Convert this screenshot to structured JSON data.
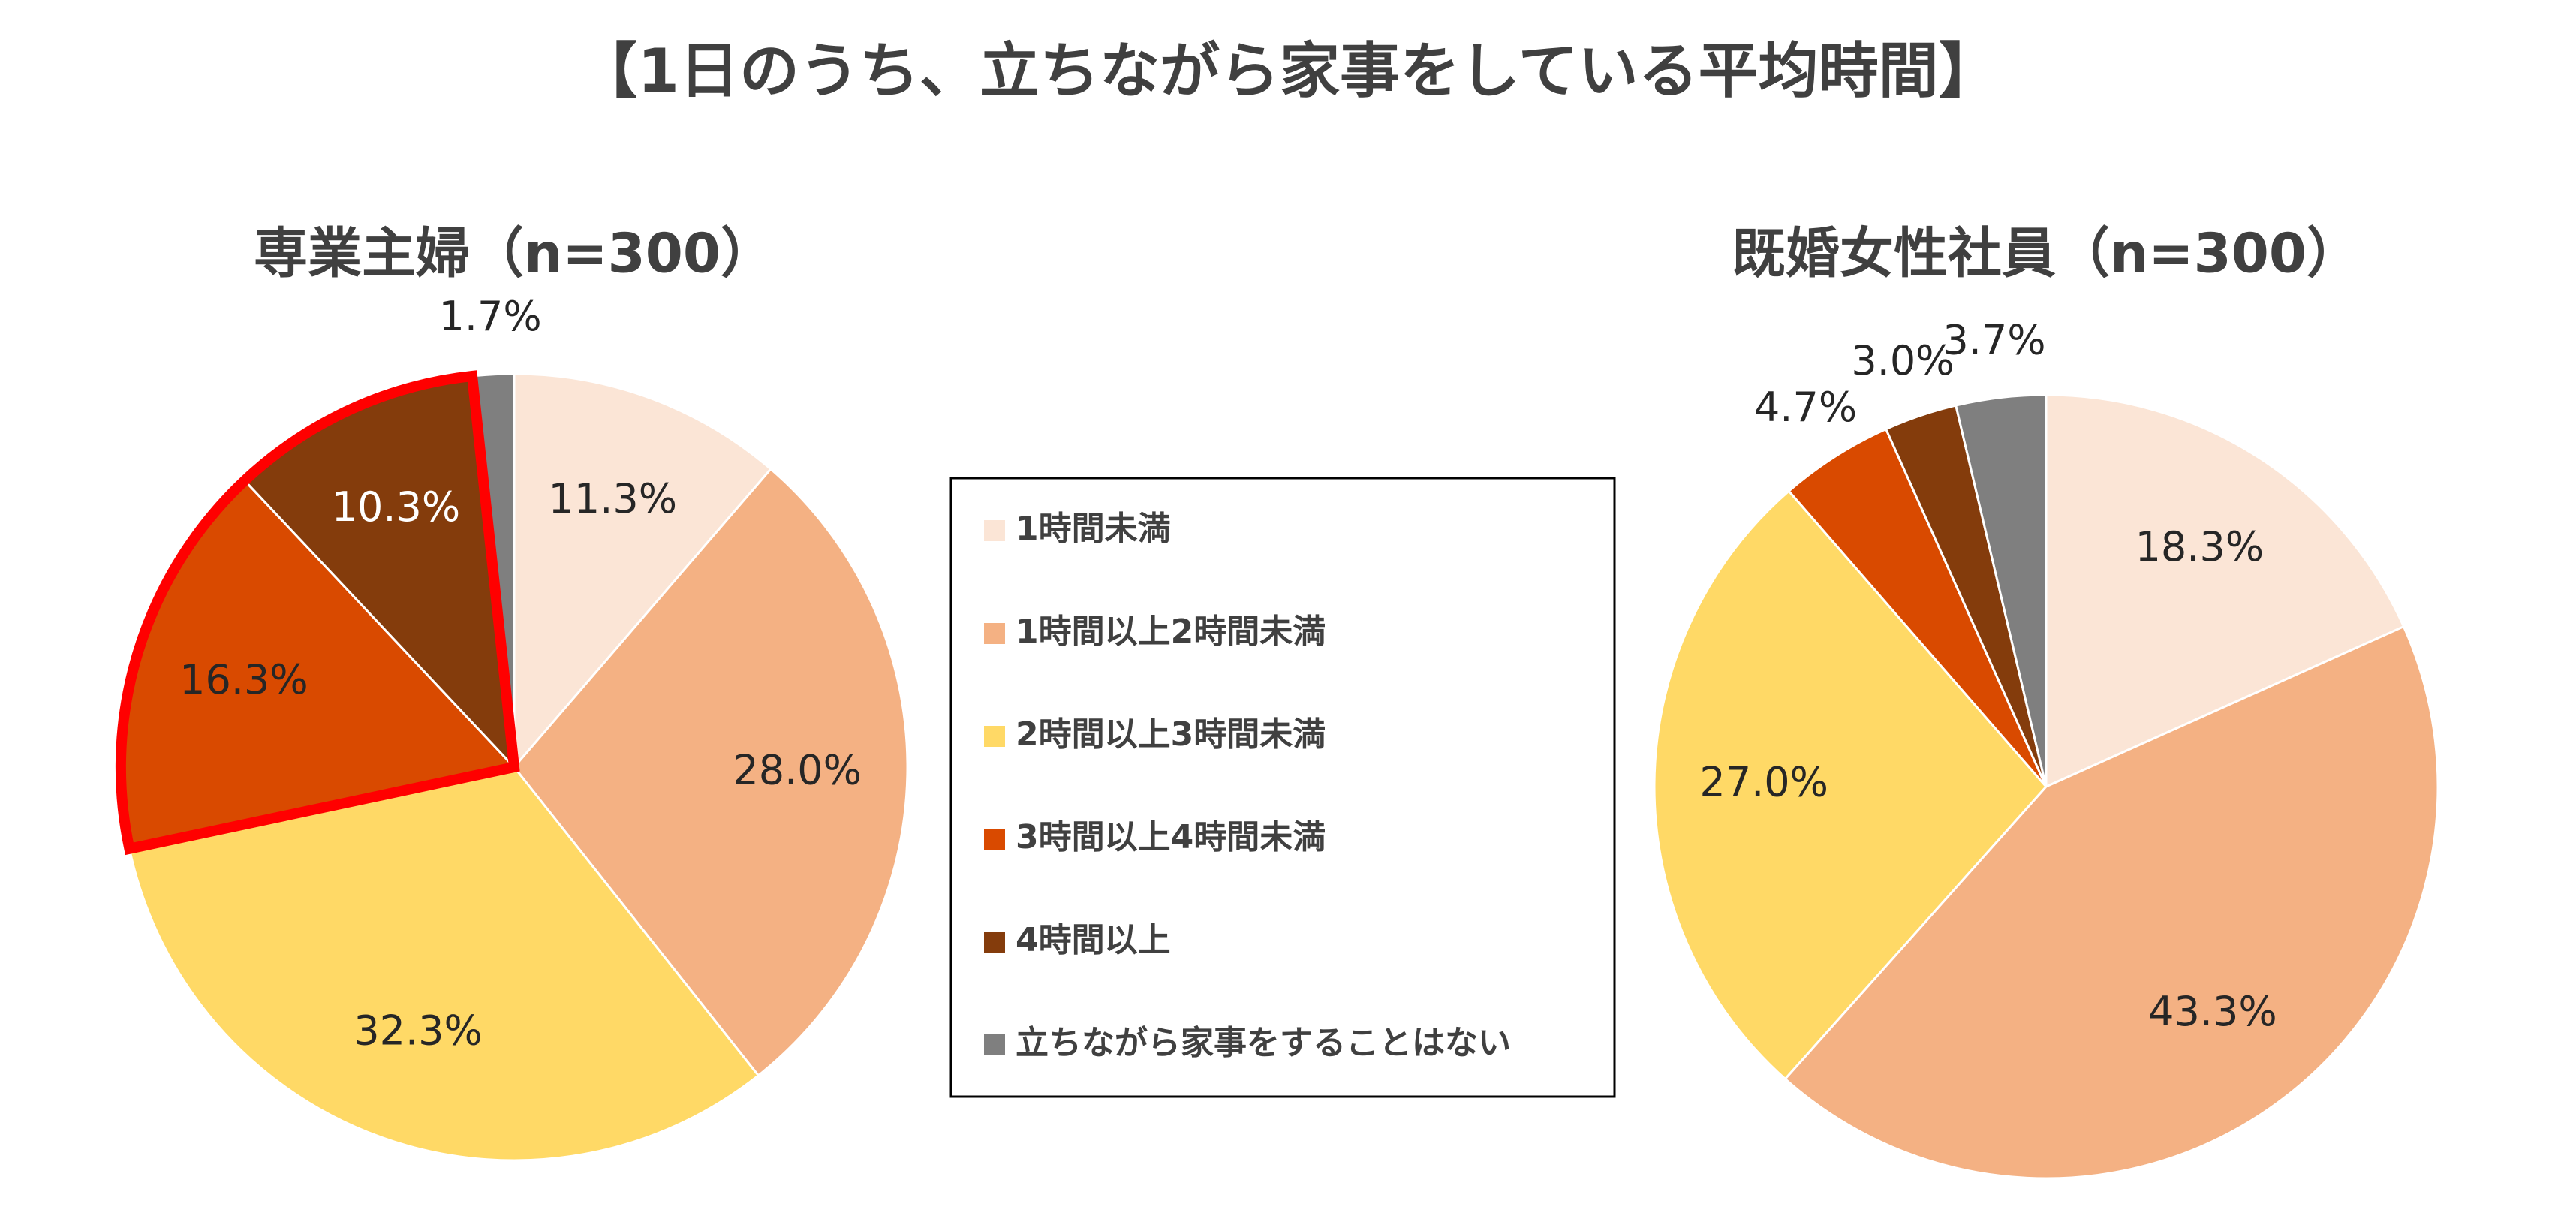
{
  "title": "【1日のうち、立ちながら家事をしている平均時間】",
  "chart_data": [
    {
      "type": "pie",
      "title": "専業主婦（n=300）",
      "categories": [
        "1時間未満",
        "1時間以上2時間未満",
        "2時間以上3時間未満",
        "3時間以上4時間未満",
        "4時間以上",
        "立ちながら家事をすることはない"
      ],
      "values": [
        11.3,
        28.0,
        32.3,
        16.3,
        10.3,
        1.7
      ],
      "value_labels": [
        "11.3%",
        "28.0%",
        "32.3%",
        "16.3%",
        "10.3%",
        "1.7%"
      ],
      "colors": [
        "#fbe5d6",
        "#f4b183",
        "#ffd966",
        "#d94a00",
        "#843c0c",
        "#7f7f7f"
      ],
      "highlight": [
        3,
        4
      ],
      "highlight_color": "#ff0000"
    },
    {
      "type": "pie",
      "title": "既婚女性社員（n=300）",
      "categories": [
        "1時間未満",
        "1時間以上2時間未満",
        "2時間以上3時間未満",
        "3時間以上4時間未満",
        "4時間以上",
        "立ちながら家事をすることはない"
      ],
      "values": [
        18.3,
        43.3,
        27.0,
        4.7,
        3.0,
        3.7
      ],
      "value_labels": [
        "18.3%",
        "43.3%",
        "27.0%",
        "4.7%",
        "3.0%",
        "3.7%"
      ],
      "colors": [
        "#fbe5d6",
        "#f4b183",
        "#ffd966",
        "#d94a00",
        "#843c0c",
        "#7f7f7f"
      ]
    }
  ]
}
